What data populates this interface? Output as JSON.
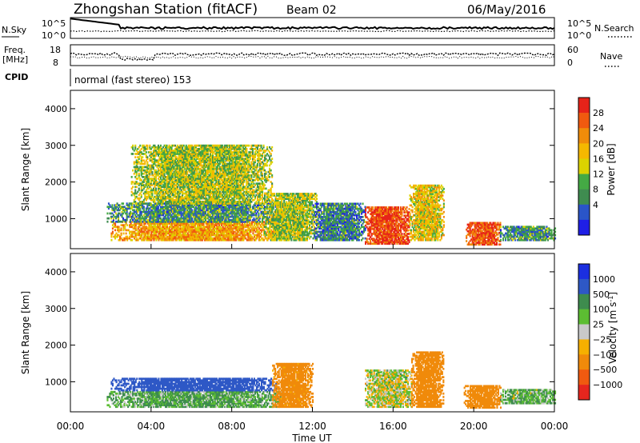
{
  "header": {
    "station": "Zhongshan Station (fitACF)",
    "beam": "Beam 02",
    "date": "06/May/2016"
  },
  "noise_panel": {
    "left_label": "N.Sky",
    "left_ticks": [
      "10^5",
      "10^0"
    ],
    "right_ticks": [
      "10^5",
      "10^0"
    ],
    "right_label": "N.Search"
  },
  "freq_panel": {
    "left_label_top": "Freq.",
    "left_label_bottom": "[MHz]",
    "left_ticks": [
      "18",
      "8"
    ],
    "right_ticks": [
      "60",
      "0"
    ],
    "right_label": "Nave"
  },
  "cpid": {
    "label": "CPID",
    "text": "normal (fast stereo) 153"
  },
  "colors": {
    "power_scale": [
      "#1f1fe6",
      "#2a55c8",
      "#3f8c50",
      "#44aa44",
      "#dcd200",
      "#f5b800",
      "#f08c0a",
      "#f05a0f",
      "#e62319"
    ],
    "velocity_scale": [
      "#1b2fe0",
      "#2e58c6",
      "#3e8c4e",
      "#5cbd32",
      "#c9c9c9",
      "#f6b000",
      "#f08a0a",
      "#f05a10",
      "#e6261e"
    ]
  },
  "chart_data": [
    {
      "type": "heatmap",
      "title": "",
      "xlabel": "Time UT",
      "ylabel": "Slant Range [km]",
      "xlim": [
        0,
        24
      ],
      "ylim": [
        180,
        4500
      ],
      "x_ticks": [
        "00:00",
        "04:00",
        "08:00",
        "12:00",
        "16:00",
        "20:00",
        "00:00"
      ],
      "y_ticks": [
        "1000",
        "2000",
        "3000",
        "4000"
      ],
      "colorbar_label": "Power [dB]",
      "colorbar_ticks": [
        "4",
        "8",
        "12",
        "16",
        "20",
        "24",
        "28"
      ],
      "colorbar_range": [
        0,
        30
      ],
      "features": [
        {
          "region": "main band",
          "t_start": 2.0,
          "t_end": 10.2,
          "range_min": 400,
          "range_max": 900,
          "value": 20
        },
        {
          "region": "main band upper fringe",
          "t_start": 1.8,
          "t_end": 10.5,
          "range_min": 900,
          "range_max": 1400,
          "value": 9
        },
        {
          "region": "scattered high range",
          "t_start": 3.0,
          "t_end": 10.0,
          "range_min": 1400,
          "range_max": 3000,
          "value": 14
        },
        {
          "region": "10-12 UT patch",
          "t_start": 9.6,
          "t_end": 12.2,
          "range_min": 400,
          "range_max": 1700,
          "value": 14
        },
        {
          "region": "12-15 UT patches",
          "t_start": 12.0,
          "t_end": 14.6,
          "range_min": 400,
          "range_max": 1400,
          "value": 8
        },
        {
          "region": "15-17 UT intense",
          "t_start": 14.6,
          "t_end": 16.8,
          "range_min": 300,
          "range_max": 1300,
          "value": 27
        },
        {
          "region": "17-18.5 UT patch",
          "t_start": 16.8,
          "t_end": 18.5,
          "range_min": 400,
          "range_max": 1900,
          "value": 17
        },
        {
          "region": "19.5-21.2 UT intense",
          "t_start": 19.6,
          "t_end": 21.3,
          "range_min": 280,
          "range_max": 900,
          "value": 26
        },
        {
          "region": "21-24 UT sparse",
          "t_start": 21.3,
          "t_end": 24.0,
          "range_min": 400,
          "range_max": 800,
          "value": 9
        }
      ]
    },
    {
      "type": "heatmap",
      "title": "",
      "xlabel": "Time UT",
      "ylabel": "Slant Range [km]",
      "xlim": [
        0,
        24
      ],
      "ylim": [
        180,
        4500
      ],
      "x_ticks": [
        "00:00",
        "04:00",
        "08:00",
        "12:00",
        "16:00",
        "20:00",
        "00:00"
      ],
      "y_ticks": [
        "1000",
        "2000",
        "3000",
        "4000"
      ],
      "colorbar_label": "Velocity [m s",
      "colorbar_label_sup": "-1",
      "colorbar_label_end": "]",
      "colorbar_ticks": [
        "1000",
        "500",
        "100",
        "25",
        "−25",
        "−100",
        "−500",
        "−1000"
      ],
      "colorbar_range": [
        -1000,
        1000
      ],
      "features": [
        {
          "region": "main band low",
          "t_start": 1.8,
          "t_end": 10.5,
          "range_min": 300,
          "range_max": 750,
          "value": 100
        },
        {
          "region": "main band high",
          "t_start": 2.0,
          "t_end": 10.2,
          "range_min": 750,
          "range_max": 1100,
          "value": 700
        },
        {
          "region": "10-12 UT patch",
          "t_start": 10.0,
          "t_end": 12.0,
          "range_min": 300,
          "range_max": 1500,
          "value": -200
        },
        {
          "region": "15-17 UT grey",
          "t_start": 14.6,
          "t_end": 16.9,
          "range_min": 300,
          "range_max": 1300,
          "value": 0
        },
        {
          "region": "17-18.5 UT orange",
          "t_start": 16.9,
          "t_end": 18.5,
          "range_min": 300,
          "range_max": 1800,
          "value": -300
        },
        {
          "region": "19.5-21.2 UT orange",
          "t_start": 19.5,
          "t_end": 21.3,
          "range_min": 280,
          "range_max": 900,
          "value": -250
        },
        {
          "region": "21-24 UT sparse",
          "t_start": 21.3,
          "t_end": 24.0,
          "range_min": 400,
          "range_max": 800,
          "value": 80
        }
      ]
    }
  ]
}
